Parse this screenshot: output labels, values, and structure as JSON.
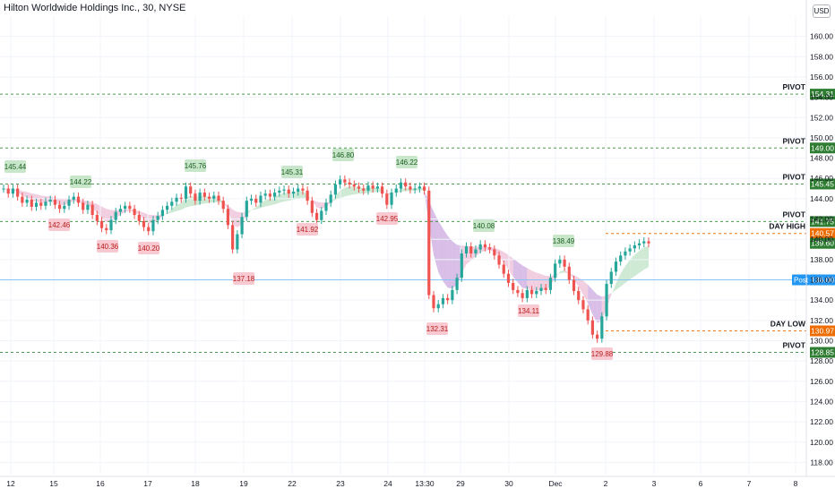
{
  "header": {
    "title": "Hilton Worldwide Holdings Inc., 30, NYSE",
    "currency": "USD"
  },
  "colors": {
    "up": "#26a69a",
    "down": "#ef5350",
    "pivot_line": "#388e3c",
    "pivot_tag": "#2e7d32",
    "day_tag": "#ef6c00",
    "post_tag": "#2196f3",
    "band_pink": "#e8a5c8",
    "band_purple": "#b98ad6",
    "band_green": "#a8d8b0",
    "high_label_bg": "#c8e6c9",
    "low_label_bg": "#f8c9d0"
  },
  "chart_data": {
    "type": "candlestick",
    "title": "Hilton Worldwide Holdings Inc., 30, NYSE",
    "ylim": [
      116.8,
      162.0
    ],
    "y_ticks": [
      "118.00",
      "120.00",
      "122.00",
      "124.00",
      "126.00",
      "128.00",
      "130.00",
      "132.00",
      "134.00",
      "136.00",
      "138.00",
      "140.00",
      "142.00",
      "144.00",
      "146.00",
      "148.00",
      "150.00",
      "152.00",
      "154.00",
      "156.00",
      "158.00",
      "160.00"
    ],
    "x_ticks": [
      "12",
      "15",
      "16",
      "17",
      "18",
      "19",
      "22",
      "23",
      "24",
      "13:30",
      "29",
      "30",
      "Dec",
      "2",
      "3",
      "6",
      "7",
      "8"
    ],
    "horizontal_levels": [
      {
        "name": "PIVOT",
        "value": "154.31",
        "kind": "pivot"
      },
      {
        "name": "PIVOT",
        "value": "149.00",
        "kind": "pivot"
      },
      {
        "name": "PIVOT",
        "value": "145.45",
        "kind": "pivot"
      },
      {
        "name": "PIVOT",
        "value": "141.75",
        "kind": "pivot"
      },
      {
        "name": "DAY HIGH",
        "value": "140.57",
        "kind": "day"
      },
      {
        "name": "",
        "value": "139.60",
        "kind": "last"
      },
      {
        "name": "Post",
        "value": "136.00",
        "kind": "post"
      },
      {
        "name": "DAY LOW",
        "value": "130.97",
        "kind": "day"
      },
      {
        "name": "PIVOT",
        "value": "128.85",
        "kind": "pivot"
      }
    ],
    "swing_highs": [
      "145.44",
      "144.22",
      "145.76",
      "145.31",
      "146.80",
      "146.22",
      "140.08",
      "138.49"
    ],
    "swing_lows": [
      "142.46",
      "140.36",
      "140.20",
      "137.18",
      "141.92",
      "142.95",
      "132.31",
      "134.11",
      "129.88"
    ],
    "approx_close_path": [
      [
        0,
        145.0
      ],
      [
        1,
        144.5
      ],
      [
        2,
        145.0
      ],
      [
        3,
        144.2
      ],
      [
        4,
        143.6
      ],
      [
        5,
        143.9
      ],
      [
        6,
        143.2
      ],
      [
        7,
        143.6
      ],
      [
        8,
        143.3
      ],
      [
        9,
        143.7
      ],
      [
        10,
        143.9
      ],
      [
        11,
        143.4
      ],
      [
        12,
        143.0
      ],
      [
        13,
        143.3
      ],
      [
        14,
        143.9
      ],
      [
        15,
        144.2
      ],
      [
        16,
        143.6
      ],
      [
        17,
        142.9
      ],
      [
        18,
        143.4
      ],
      [
        19,
        142.4
      ],
      [
        20,
        141.8
      ],
      [
        21,
        141.1
      ],
      [
        22,
        140.9
      ],
      [
        23,
        141.9
      ],
      [
        24,
        142.7
      ],
      [
        25,
        143.0
      ],
      [
        26,
        143.3
      ],
      [
        27,
        143.0
      ],
      [
        28,
        142.4
      ],
      [
        29,
        141.8
      ],
      [
        30,
        141.2
      ],
      [
        31,
        140.8
      ],
      [
        32,
        141.9
      ],
      [
        33,
        142.3
      ],
      [
        34,
        142.9
      ],
      [
        35,
        143.3
      ],
      [
        36,
        143.7
      ],
      [
        37,
        144.1
      ],
      [
        38,
        144.0
      ],
      [
        39,
        145.2
      ],
      [
        40,
        144.5
      ],
      [
        41,
        143.8
      ],
      [
        42,
        144.6
      ],
      [
        43,
        144.2
      ],
      [
        44,
        144.0
      ],
      [
        45,
        144.3
      ],
      [
        46,
        143.8
      ],
      [
        47,
        143.0
      ],
      [
        48,
        141.4
      ],
      [
        49,
        139.0
      ],
      [
        50,
        140.5
      ],
      [
        51,
        142.2
      ],
      [
        52,
        143.8
      ],
      [
        53,
        144.0
      ],
      [
        54,
        143.6
      ],
      [
        55,
        144.3
      ],
      [
        56,
        144.5
      ],
      [
        57,
        144.2
      ],
      [
        58,
        144.6
      ],
      [
        59,
        144.8
      ],
      [
        60,
        144.9
      ],
      [
        61,
        144.5
      ],
      [
        62,
        144.7
      ],
      [
        63,
        145.0
      ],
      [
        64,
        144.8
      ],
      [
        65,
        143.8
      ],
      [
        66,
        142.6
      ],
      [
        67,
        141.9
      ],
      [
        68,
        142.8
      ],
      [
        69,
        143.6
      ],
      [
        70,
        144.4
      ],
      [
        71,
        145.4
      ],
      [
        72,
        145.9
      ],
      [
        73,
        145.6
      ],
      [
        74,
        145.4
      ],
      [
        75,
        145.2
      ],
      [
        76,
        145.0
      ],
      [
        77,
        144.8
      ],
      [
        78,
        145.3
      ],
      [
        79,
        145.0
      ],
      [
        80,
        145.2
      ],
      [
        81,
        144.5
      ],
      [
        82,
        143.4
      ],
      [
        83,
        144.6
      ],
      [
        84,
        145.0
      ],
      [
        85,
        145.6
      ],
      [
        86,
        145.2
      ],
      [
        87,
        144.9
      ],
      [
        88,
        145.0
      ],
      [
        89,
        145.2
      ],
      [
        90,
        144.8
      ],
      [
        91,
        134.5
      ],
      [
        92,
        133.2
      ],
      [
        93,
        133.6
      ],
      [
        94,
        134.2
      ],
      [
        95,
        134.0
      ],
      [
        96,
        135.0
      ],
      [
        97,
        136.2
      ],
      [
        98,
        138.6
      ],
      [
        99,
        139.3
      ],
      [
        100,
        138.6
      ],
      [
        101,
        139.0
      ],
      [
        102,
        139.5
      ],
      [
        103,
        139.2
      ],
      [
        104,
        139.0
      ],
      [
        105,
        138.4
      ],
      [
        106,
        137.5
      ],
      [
        107,
        136.6
      ],
      [
        108,
        135.7
      ],
      [
        109,
        135.0
      ],
      [
        110,
        134.7
      ],
      [
        111,
        134.2
      ],
      [
        112,
        135.0
      ],
      [
        113,
        134.6
      ],
      [
        114,
        134.9
      ],
      [
        115,
        135.2
      ],
      [
        116,
        135.0
      ],
      [
        117,
        136.2
      ],
      [
        118,
        137.6
      ],
      [
        119,
        138.0
      ],
      [
        120,
        137.3
      ],
      [
        121,
        136.0
      ],
      [
        122,
        134.9
      ],
      [
        123,
        134.0
      ],
      [
        124,
        133.1
      ],
      [
        125,
        132.0
      ],
      [
        126,
        130.6
      ],
      [
        127,
        130.2
      ],
      [
        128,
        132.4
      ],
      [
        129,
        135.6
      ],
      [
        130,
        136.8
      ],
      [
        131,
        137.8
      ],
      [
        132,
        138.4
      ],
      [
        133,
        138.8
      ],
      [
        134,
        139.1
      ],
      [
        135,
        139.4
      ],
      [
        136,
        139.6
      ],
      [
        137,
        139.8
      ],
      [
        138,
        139.6
      ]
    ]
  }
}
